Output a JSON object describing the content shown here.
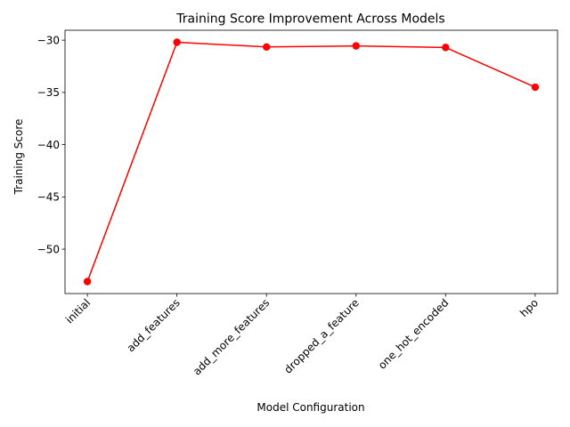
{
  "chart_data": {
    "type": "line",
    "title": "Training Score Improvement Across Models",
    "xlabel": "Model Configuration",
    "ylabel": "Training Score",
    "categories": [
      "initial",
      "add_features",
      "add_more_features",
      "dropped_a_feature",
      "one_hot_encoded",
      "hpo"
    ],
    "series": [
      {
        "values": [
          -53.1,
          -30.2,
          -30.65,
          -30.55,
          -30.7,
          -34.5
        ],
        "color": "#ff0000",
        "marker": "circle"
      }
    ],
    "ylim": [
      -54.25,
      -29.05
    ],
    "yticks": [
      -30,
      -35,
      -40,
      -45,
      -50
    ],
    "xtick_rotation": 45,
    "grid": false,
    "legend": "none"
  }
}
